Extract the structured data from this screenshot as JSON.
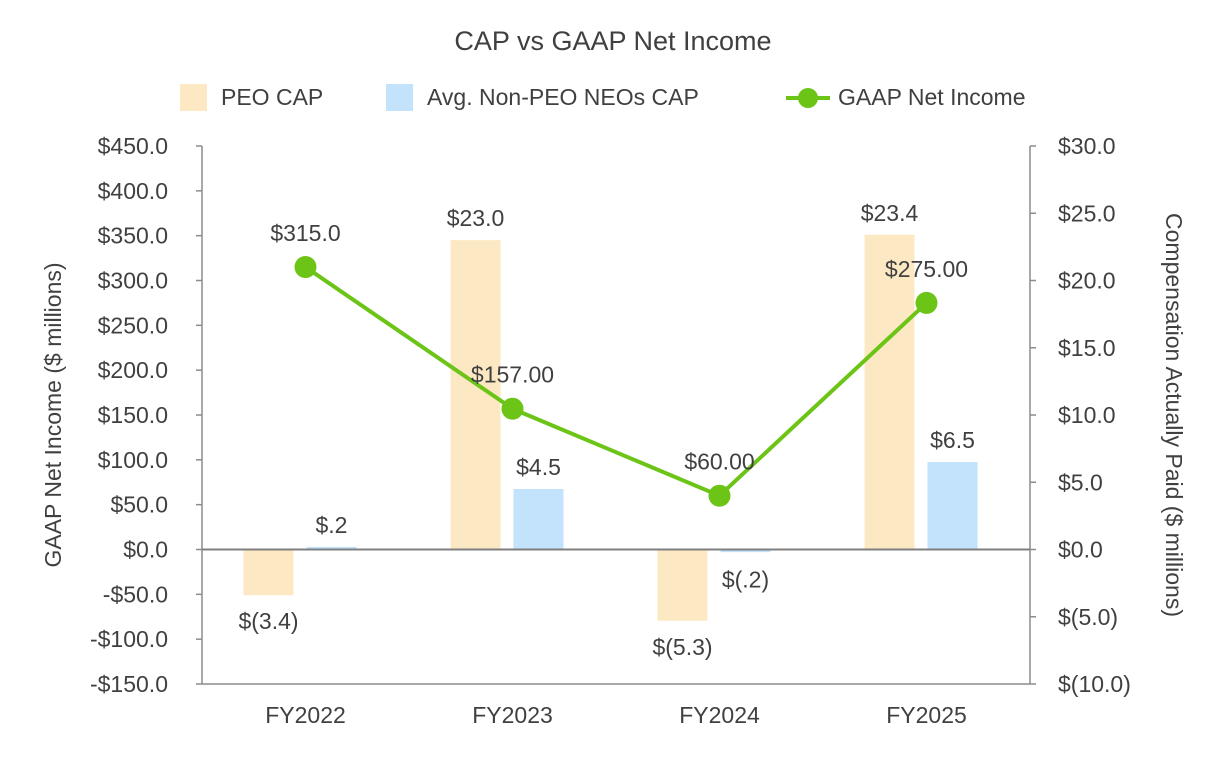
{
  "chart_data": {
    "title": "CAP vs GAAP Net Income",
    "type": "bar",
    "categories": [
      "FY2022",
      "FY2023",
      "FY2024",
      "FY2025"
    ],
    "legend_position": "top",
    "grid": false,
    "y_left": {
      "label": "GAAP Net Income ($ millions)",
      "range": [
        -150,
        450
      ],
      "ticks": [
        450,
        400,
        350,
        300,
        250,
        200,
        150,
        100,
        50,
        0,
        -50,
        -100,
        -150
      ],
      "tick_labels": [
        "$450.0",
        "$400.0",
        "$350.0",
        "$300.0",
        "$250.0",
        "$200.0",
        "$150.0",
        "$100.0",
        "$50.0",
        "$0.0",
        "-$50.0",
        "-$100.0",
        "-$150.0"
      ]
    },
    "y_right": {
      "label": "Compensation Actually Paid ($ millions)",
      "range": [
        -10,
        30
      ],
      "ticks": [
        30,
        25,
        20,
        15,
        10,
        5,
        0,
        -5,
        -10
      ],
      "tick_labels": [
        "$30.0",
        "$25.0",
        "$20.0",
        "$15.0",
        "$10.0",
        "$5.0",
        "$0.0",
        "$(5.0)",
        "$(10.0)"
      ]
    },
    "series": [
      {
        "name": "PEO CAP",
        "type": "bar",
        "axis": "right",
        "color": "#fde8c4",
        "values": [
          -3.4,
          23.0,
          -5.3,
          23.4
        ],
        "data_labels": [
          "$(3.4)",
          "$23.0",
          "$(5.3)",
          "$23.4"
        ]
      },
      {
        "name": "Avg. Non-PEO NEOs CAP",
        "type": "bar",
        "axis": "right",
        "color": "#c3e2fb",
        "values": [
          0.2,
          4.5,
          -0.2,
          6.5
        ],
        "data_labels": [
          "$.2",
          "$4.5",
          "$(.2)",
          "$6.5"
        ]
      },
      {
        "name": "GAAP Net Income",
        "type": "line",
        "axis": "left",
        "color": "#6cc417",
        "values": [
          315.0,
          157.0,
          60.0,
          275.0
        ],
        "data_labels": [
          "$315.0",
          "$157.00",
          "$60.00",
          "$275.00"
        ]
      }
    ]
  }
}
